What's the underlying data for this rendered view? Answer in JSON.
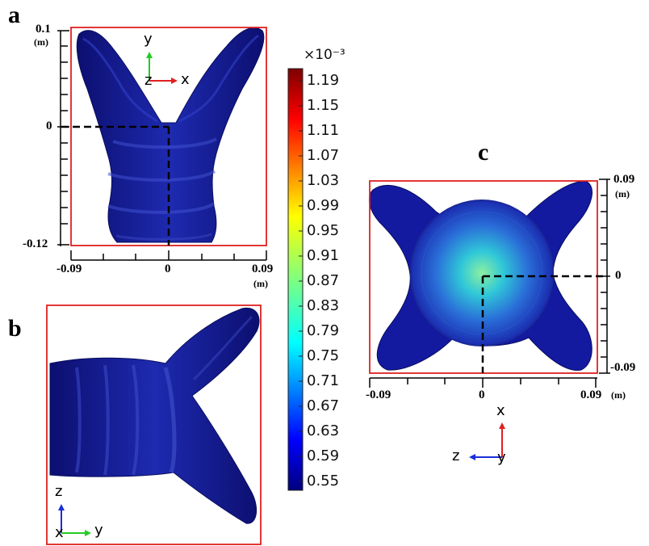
{
  "panels": {
    "a": {
      "letter": "a",
      "y_top": "0.1",
      "y_zero": "0",
      "y_bottom": "-0.12",
      "x_left": "-0.09",
      "x_zero": "0",
      "x_right": "0.09",
      "unit": "(m)"
    },
    "b": {
      "letter": "b"
    },
    "c": {
      "letter": "c",
      "y_top": "0.09",
      "y_zero": "0",
      "y_bottom": "-0.09",
      "x_left": "-0.09",
      "x_zero": "0",
      "x_right": "0.09",
      "unit": "(m)"
    }
  },
  "triads": {
    "a": {
      "up": "y",
      "right": "x",
      "origin": "z"
    },
    "b": {
      "up": "z",
      "right": "y",
      "origin": "x"
    },
    "c": {
      "up": "x",
      "left": "z",
      "origin": "y"
    }
  },
  "colorbar": {
    "exponent": "×10⁻³",
    "labels": [
      "1.19",
      "1.15",
      "1.11",
      "1.07",
      "1.03",
      "0.99",
      "0.95",
      "0.91",
      "0.87",
      "0.83",
      "0.79",
      "0.75",
      "0.71",
      "0.67",
      "0.63",
      "0.59",
      "0.55"
    ]
  },
  "colors": {
    "frame": "#e02020",
    "shape": "#10148c",
    "axis_x": "#e02020",
    "axis_y": "#22cc22",
    "axis_z": "#1a2fd8"
  }
}
